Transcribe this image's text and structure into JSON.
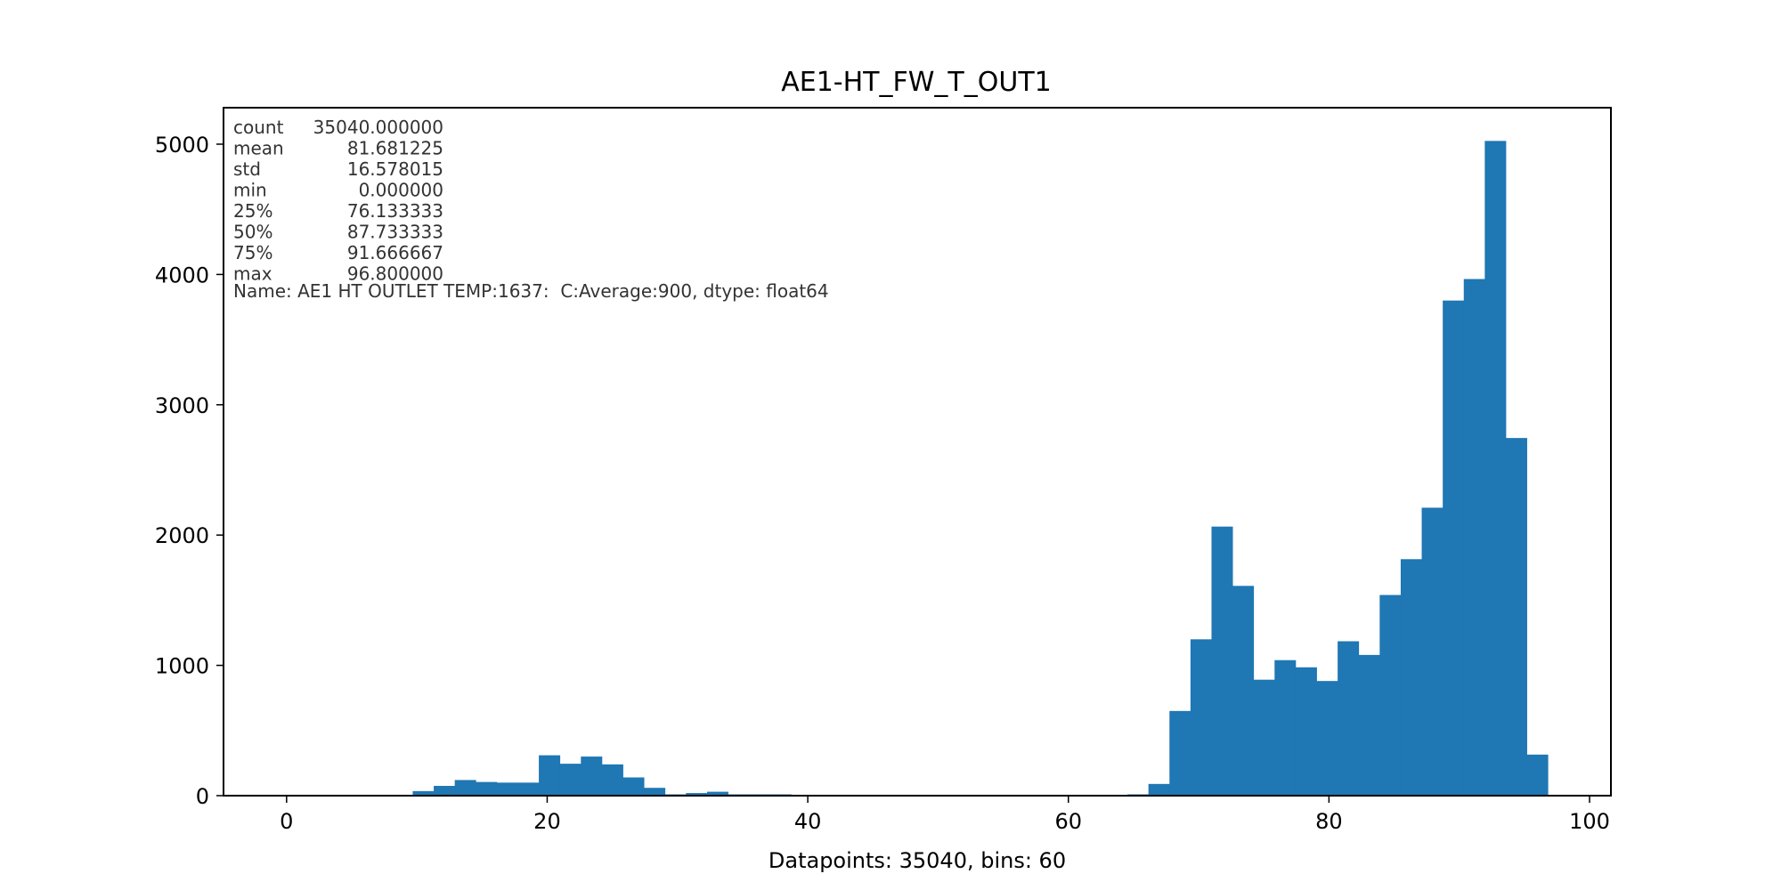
{
  "chart_data": {
    "type": "bar",
    "title": "AE1-HT_FW_T_OUT1",
    "xlabel": "Datapoints: 35040, bins: 60",
    "ylabel": "",
    "xlim": [
      -4.84,
      101.64
    ],
    "ylim": [
      0,
      5280
    ],
    "x_ticks": [
      0,
      20,
      40,
      60,
      80,
      100
    ],
    "y_ticks": [
      0,
      1000,
      2000,
      3000,
      4000,
      5000
    ],
    "grid": false,
    "color": "#1f77b4",
    "bin_range": [
      0,
      96.8
    ],
    "bins": 60,
    "values": [
      0,
      0,
      0,
      0,
      0,
      0,
      35,
      75,
      120,
      105,
      100,
      100,
      310,
      245,
      300,
      240,
      140,
      60,
      10,
      20,
      30,
      10,
      10,
      10,
      5,
      0,
      0,
      0,
      0,
      0,
      0,
      0,
      0,
      0,
      0,
      0,
      0,
      0,
      0,
      0,
      10,
      90,
      650,
      1200,
      2065,
      1610,
      890,
      1040,
      985,
      880,
      1185,
      1080,
      1540,
      1815,
      2210,
      3800,
      3965,
      5025,
      2745,
      315
    ],
    "stats_rows": [
      {
        "label": "count",
        "value": "35040.000000"
      },
      {
        "label": "mean",
        "value": "81.681225"
      },
      {
        "label": "std",
        "value": "16.578015"
      },
      {
        "label": "min",
        "value": "0.000000"
      },
      {
        "label": "25%",
        "value": "76.133333"
      },
      {
        "label": "50%",
        "value": "87.733333"
      },
      {
        "label": "75%",
        "value": "91.666667"
      },
      {
        "label": "max",
        "value": "96.800000"
      }
    ],
    "stats_footer": "Name: AE1 HT OUTLET TEMP:1637:  C:Average:900, dtype: float64"
  }
}
